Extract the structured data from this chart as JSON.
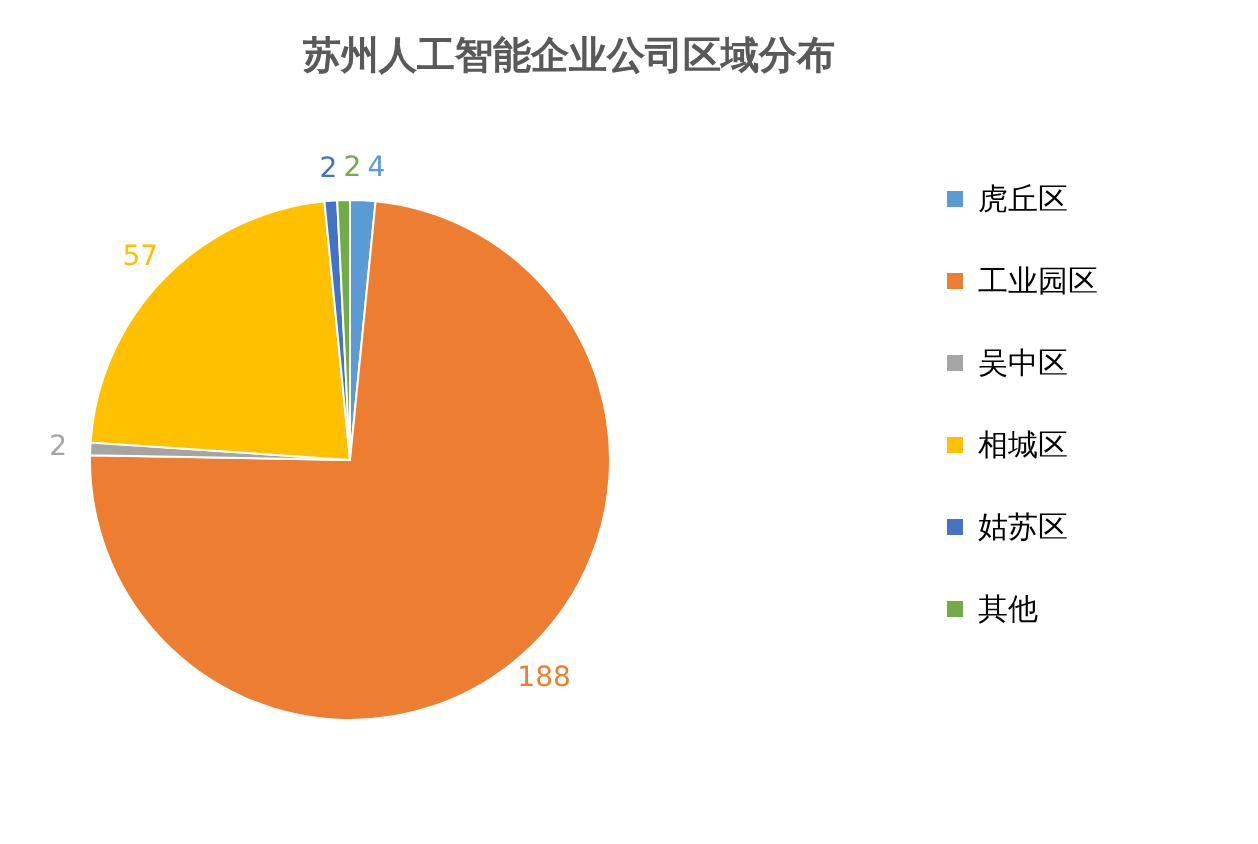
{
  "chart_data": {
    "type": "pie",
    "title": "苏州人工智能企业公司区域分布",
    "categories": [
      "虎丘区",
      "工业园区",
      "吴中区",
      "相城区",
      "姑苏区",
      "其他"
    ],
    "values": [
      4,
      188,
      2,
      57,
      2,
      2
    ],
    "colors": [
      "#5b9bd5",
      "#ed7d31",
      "#a5a5a5",
      "#ffc000",
      "#4472c4",
      "#70ad47"
    ],
    "data_labels": true,
    "legend": "right"
  }
}
